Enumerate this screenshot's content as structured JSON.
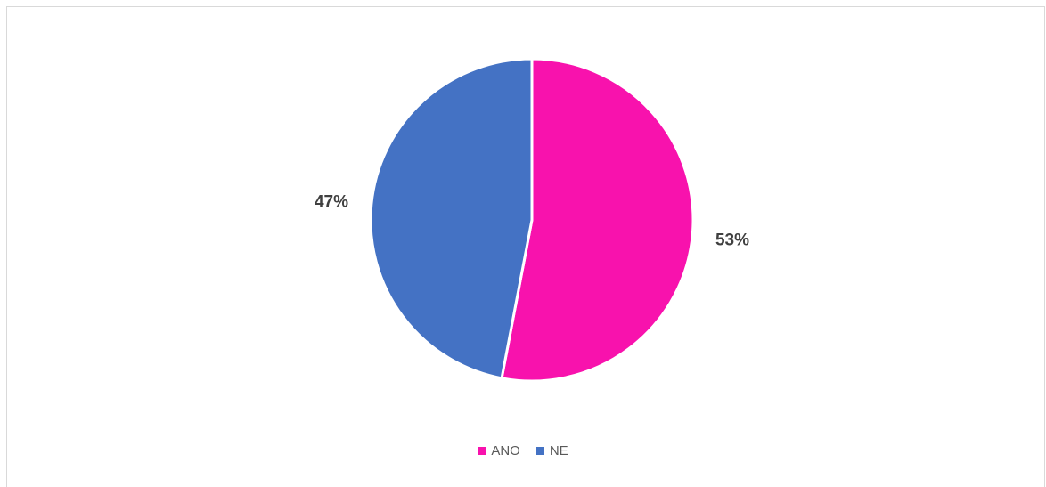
{
  "chart_data": {
    "type": "pie",
    "categories": [
      "ANO",
      "NE"
    ],
    "values": [
      53,
      47
    ],
    "labels": [
      "53%",
      "47%"
    ],
    "colors": [
      "#f812ad",
      "#4472c4"
    ],
    "legend": "bottom",
    "title": ""
  }
}
